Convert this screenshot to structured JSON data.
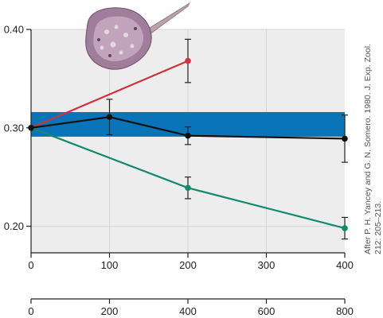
{
  "chart_data": {
    "type": "line",
    "x": [
      0,
      100,
      200,
      400
    ],
    "x2_ticks": [
      0,
      200,
      400,
      600,
      800
    ],
    "x_ticks": [
      0,
      100,
      200,
      300,
      400
    ],
    "y_ticks": [
      0.2,
      0.3,
      0.4
    ],
    "y_tick_labels": [
      "0.20",
      "0.30",
      "0.40"
    ],
    "xlim": [
      0,
      400
    ],
    "ylim": [
      0.173,
      0.4
    ],
    "x2lim": [
      0,
      800
    ],
    "band": {
      "low": 0.291,
      "high": 0.316,
      "color": "#0a74b8"
    },
    "grid": true,
    "series": [
      {
        "color": "#d1313f",
        "x": [
          0,
          200
        ],
        "values": [
          0.3,
          0.368
        ],
        "err": [
          null,
          0.022
        ]
      },
      {
        "color": "#111111",
        "x": [
          0,
          100,
          200,
          400
        ],
        "values": [
          0.3,
          0.311,
          0.292,
          0.289
        ],
        "err": [
          null,
          0.018,
          0.009,
          0.024
        ]
      },
      {
        "color": "#138a6e",
        "x": [
          0,
          200,
          400
        ],
        "values": [
          0.3,
          0.239,
          0.198
        ],
        "err": [
          null,
          0.011,
          0.011
        ]
      }
    ]
  },
  "credit": {
    "line1": "After P. H. Yancey and G. N. Somero. 1980. J. Exp. Zool.",
    "line2": "212: 205–213."
  },
  "illustration": {
    "icon": "stingray-icon"
  }
}
